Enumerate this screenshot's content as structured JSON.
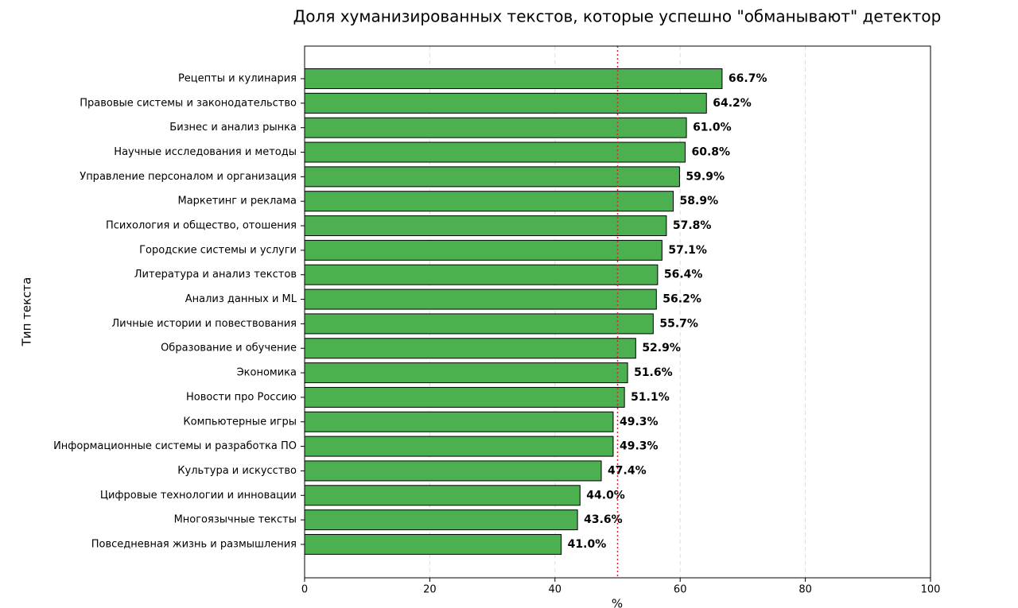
{
  "chart_data": {
    "type": "barh",
    "title": "Доля хуманизированных текстов, которые успешно \"обманывают\" детектор",
    "x_label": "%",
    "y_label": "Тип текста",
    "categories": [
      "Рецепты и кулинария",
      "Правовые системы и законодательство",
      "Бизнес и анализ рынка",
      "Научные исследования и методы",
      "Управление персоналом и организация",
      "Маркетинг и реклама",
      "Психология и общество, отошения",
      "Городские системы и услуги",
      "Литература и анализ текстов",
      "Анализ данных и ML",
      "Личные истории и повествования",
      "Образование и обучение",
      "Экономика",
      "Новости про Россию",
      "Компьютерные игры",
      "Информационные системы и разработка ПО",
      "Культура и искусство",
      "Цифровые технологии и инновации",
      "Многоязычные тексты",
      "Повседневная жизнь и размышления"
    ],
    "values": [
      66.7,
      64.2,
      61.0,
      60.8,
      59.9,
      58.9,
      57.8,
      57.1,
      56.4,
      56.2,
      55.7,
      52.9,
      51.6,
      51.1,
      49.3,
      49.3,
      47.4,
      44.0,
      43.6,
      41.0
    ],
    "value_labels": [
      "66.7%",
      "64.2%",
      "61.0%",
      "60.8%",
      "59.9%",
      "58.9%",
      "57.8%",
      "57.1%",
      "56.4%",
      "56.2%",
      "55.7%",
      "52.9%",
      "51.6%",
      "51.1%",
      "49.3%",
      "49.3%",
      "47.4%",
      "44.0%",
      "43.6%",
      "41.0%"
    ],
    "color": "#4caf50",
    "xlim": [
      0,
      100
    ],
    "xticks": [
      0,
      20,
      40,
      60,
      80,
      100
    ],
    "grid": true,
    "reference_line": {
      "value": 50,
      "color": "#d62728"
    }
  }
}
